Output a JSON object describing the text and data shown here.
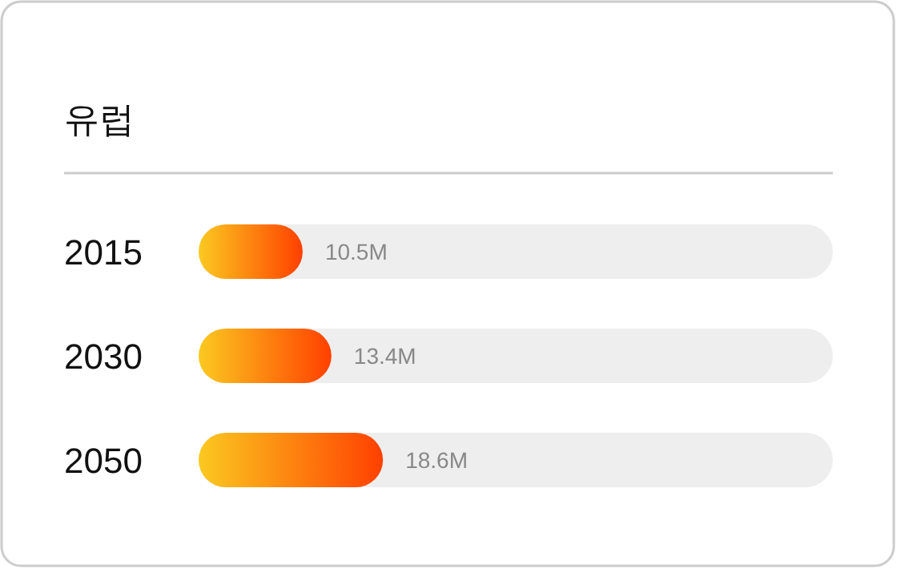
{
  "chart_data": {
    "type": "bar",
    "orientation": "horizontal",
    "title": "유럽",
    "categories": [
      "2015",
      "2030",
      "2050"
    ],
    "series": [
      {
        "color": "#ff4000",
        "values": [
          10.5,
          13.4,
          18.6
        ],
        "value_labels": [
          "10.5M",
          "13.4M",
          "18.6M"
        ]
      }
    ],
    "xlim": [
      0,
      64
    ]
  }
}
